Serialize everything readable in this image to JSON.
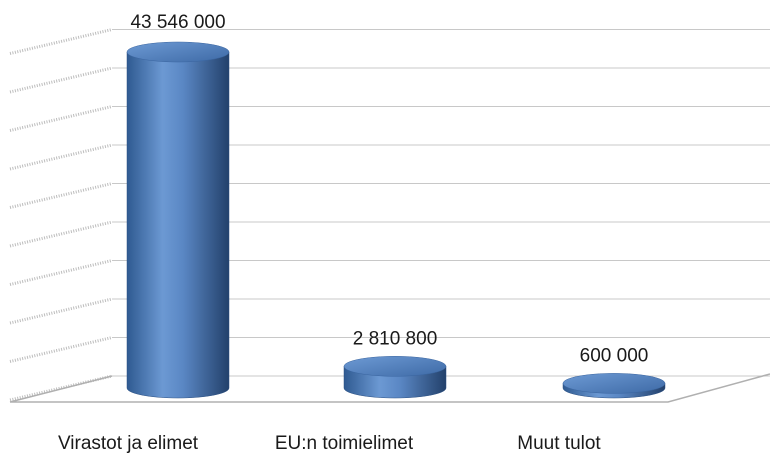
{
  "chart_data": {
    "type": "bar",
    "style": "3d-cylinder",
    "title": "",
    "xlabel": "",
    "ylabel": "",
    "categories": [
      "Virastot ja elimet",
      "EU:n toimielimet",
      "Muut tulot"
    ],
    "values": [
      43546000,
      2810800,
      600000
    ],
    "data_labels": [
      "43 546 000",
      "2 810 800",
      "600 000"
    ],
    "ylim": [
      0,
      45000000
    ],
    "grid": true,
    "legend": "none",
    "colors": {
      "bar": "#4f81bd",
      "bar_dark": "#2a4f82",
      "bar_light": "#7fa6d8",
      "grid": "#c8c8c8"
    }
  }
}
